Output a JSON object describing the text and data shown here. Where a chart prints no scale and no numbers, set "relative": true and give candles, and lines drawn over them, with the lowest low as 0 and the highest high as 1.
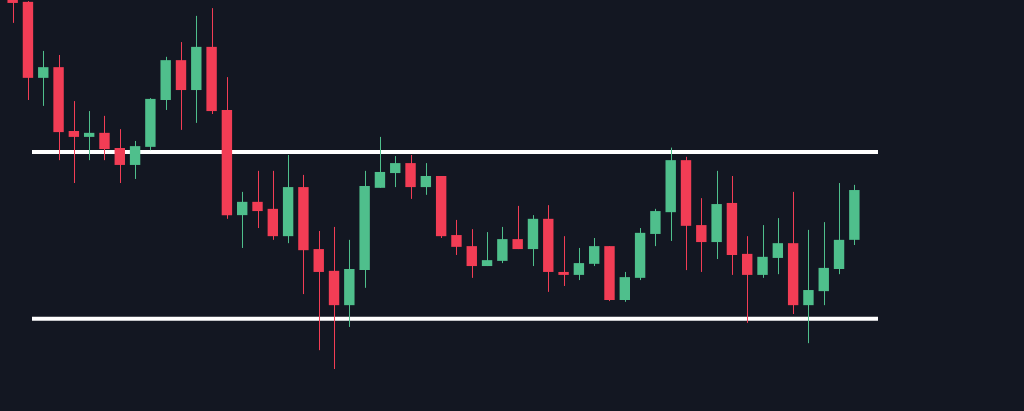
{
  "chart_data": {
    "type": "candlestick",
    "relative": true,
    "categories": [
      null,
      null,
      null,
      null,
      null,
      null,
      null,
      null,
      null,
      null,
      null,
      null,
      null,
      null,
      null,
      null,
      null,
      null,
      null,
      null,
      null,
      null,
      null,
      null,
      null,
      null,
      null,
      null,
      null,
      null,
      null,
      null,
      null,
      null,
      null,
      null,
      null,
      null,
      null,
      null,
      null,
      null,
      null,
      null,
      null,
      null,
      null,
      null,
      null,
      null,
      null,
      null,
      null,
      null,
      null,
      null
    ],
    "ohlc": [
      [
        1.0,
        1.0,
        0.938,
        0.992
      ],
      [
        0.995,
        0.997,
        0.729,
        0.789
      ],
      [
        0.789,
        0.862,
        0.713,
        0.818
      ],
      [
        0.818,
        0.851,
        0.566,
        0.642
      ],
      [
        0.645,
        0.726,
        0.504,
        0.629
      ],
      [
        0.629,
        0.699,
        0.566,
        0.64
      ],
      [
        0.64,
        0.686,
        0.566,
        0.596
      ],
      [
        0.599,
        0.65,
        0.504,
        0.553
      ],
      [
        0.553,
        0.618,
        0.515,
        0.604
      ],
      [
        0.602,
        0.734,
        0.593,
        0.732
      ],
      [
        0.729,
        0.846,
        0.702,
        0.837
      ],
      [
        0.837,
        0.886,
        0.648,
        0.756
      ],
      [
        0.756,
        0.957,
        0.667,
        0.873
      ],
      [
        0.873,
        0.978,
        0.691,
        0.699
      ],
      [
        0.702,
        0.791,
        0.407,
        0.417
      ],
      [
        0.417,
        0.48,
        0.328,
        0.453
      ],
      [
        0.453,
        0.537,
        0.382,
        0.428
      ],
      [
        0.434,
        0.537,
        0.35,
        0.36
      ],
      [
        0.36,
        0.58,
        0.341,
        0.493
      ],
      [
        0.493,
        0.526,
        0.203,
        0.322
      ],
      [
        0.325,
        0.374,
        0.051,
        0.263
      ],
      [
        0.266,
        0.385,
        0,
        0.173
      ],
      [
        0.173,
        0.35,
        0.114,
        0.271
      ],
      [
        0.268,
        0.537,
        0.22,
        0.496
      ],
      [
        0.491,
        0.629,
        0.491,
        0.534
      ],
      [
        0.531,
        0.577,
        0.493,
        0.558
      ],
      [
        0.558,
        0.58,
        0.461,
        0.493
      ],
      [
        0.493,
        0.558,
        0.472,
        0.523
      ],
      [
        0.523,
        0.523,
        0.355,
        0.36
      ],
      [
        0.363,
        0.404,
        0.309,
        0.331
      ],
      [
        0.333,
        0.379,
        0.247,
        0.279
      ],
      [
        0.279,
        0.371,
        0.279,
        0.295
      ],
      [
        0.293,
        0.385,
        0.287,
        0.352
      ],
      [
        0.352,
        0.442,
        0.325,
        0.325
      ],
      [
        0.325,
        0.417,
        0.279,
        0.407
      ],
      [
        0.407,
        0.444,
        0.209,
        0.263
      ],
      [
        0.263,
        0.36,
        0.225,
        0.255
      ],
      [
        0.255,
        0.328,
        0.241,
        0.287
      ],
      [
        0.285,
        0.355,
        0.279,
        0.333
      ],
      [
        0.333,
        0.333,
        0.184,
        0.187
      ],
      [
        0.187,
        0.263,
        0.182,
        0.249
      ],
      [
        0.247,
        0.382,
        0.241,
        0.369
      ],
      [
        0.366,
        0.434,
        0.333,
        0.428
      ],
      [
        0.425,
        0.6,
        0.347,
        0.566
      ],
      [
        0.566,
        0.575,
        0.268,
        0.388
      ],
      [
        0.39,
        0.463,
        0.263,
        0.344
      ],
      [
        0.344,
        0.537,
        0.298,
        0.447
      ],
      [
        0.45,
        0.523,
        0.255,
        0.309
      ],
      [
        0.312,
        0.36,
        0.125,
        0.255
      ],
      [
        0.255,
        0.39,
        0.247,
        0.304
      ],
      [
        0.301,
        0.409,
        0.257,
        0.341
      ],
      [
        0.341,
        0.48,
        0.149,
        0.173
      ],
      [
        0.173,
        0.377,
        0.07,
        0.214
      ],
      [
        0.211,
        0.398,
        0.173,
        0.274
      ],
      [
        0.271,
        0.504,
        0.257,
        0.35
      ],
      [
        0.35,
        0.499,
        0.336,
        0.485
      ]
    ],
    "colors": [
      "#f23d55",
      "#f23d55",
      "#4fbf8c",
      "#f23d55",
      "#f23d55",
      "#4fbf8c",
      "#f23d55",
      "#f23d55",
      "#4fbf8c",
      "#4fbf8c",
      "#4fbf8c",
      "#f23d55",
      "#4fbf8c",
      "#f23d55",
      "#f23d55",
      "#4fbf8c",
      "#f23d55",
      "#f23d55",
      "#4fbf8c",
      "#f23d55",
      "#f23d55",
      "#f23d55",
      "#4fbf8c",
      "#4fbf8c",
      "#4fbf8c",
      "#4fbf8c",
      "#f23d55",
      "#4fbf8c",
      "#f23d55",
      "#f23d55",
      "#f23d55",
      "#4fbf8c",
      "#4fbf8c",
      "#f23d55",
      "#4fbf8c",
      "#f23d55",
      "#f23d55",
      "#4fbf8c",
      "#4fbf8c",
      "#f23d55",
      "#4fbf8c",
      "#4fbf8c",
      "#4fbf8c",
      "#4fbf8c",
      "#f23d55",
      "#f23d55",
      "#4fbf8c",
      "#f23d55",
      "#f23d55",
      "#4fbf8c",
      "#4fbf8c",
      "#f23d55",
      "#4fbf8c",
      "#4fbf8c",
      "#4fbf8c",
      "#4fbf8c"
    ],
    "ref_lines": [
      {
        "axis": "y",
        "value": 0.588,
        "color": "#ffffff"
      },
      {
        "axis": "y",
        "value": 0.136,
        "color": "#ffffff"
      }
    ]
  }
}
